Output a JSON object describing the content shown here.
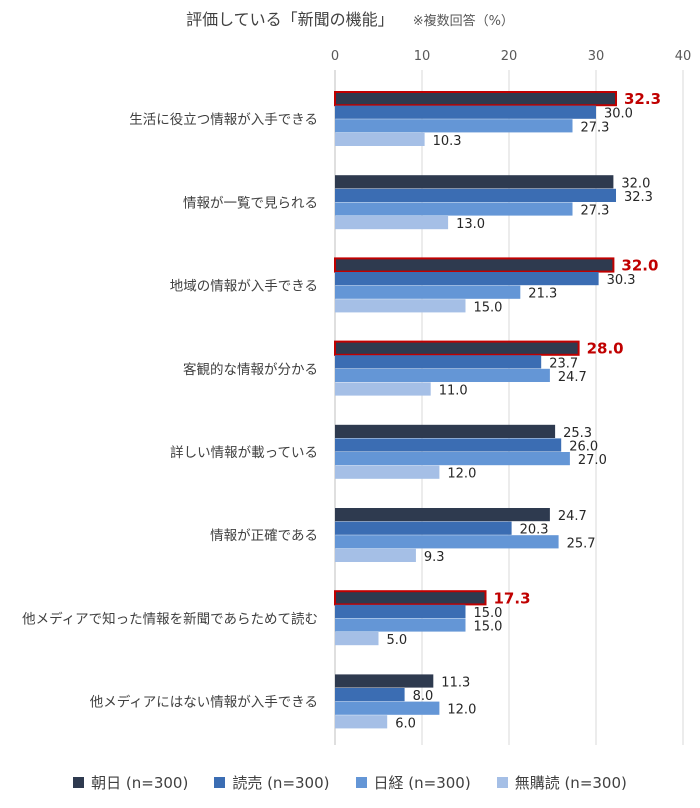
{
  "chart_data": {
    "type": "bar",
    "orientation": "horizontal",
    "title": "評価している「新聞の機能」",
    "subtitle": "※複数回答（%）",
    "xlim": [
      0,
      40
    ],
    "xticks": [
      0,
      10,
      20,
      30,
      40
    ],
    "grid": true,
    "legend_position": "bottom",
    "categories": [
      "生活に役立つ情報が入手できる",
      "情報が一覧で見られる",
      "地域の情報が入手できる",
      "客観的な情報が分かる",
      "詳しい情報が載っている",
      "情報が正確である",
      "他メディアで知った情報を新聞であらためて読む",
      "他メディアにはない情報が入手できる"
    ],
    "series": [
      {
        "name": "朝日 (n=300)",
        "color": "#2e3a4f",
        "values": [
          32.3,
          32.0,
          32.0,
          28.0,
          25.3,
          24.7,
          17.3,
          11.3
        ]
      },
      {
        "name": "読売 (n=300)",
        "color": "#3b6db3",
        "values": [
          30.0,
          32.3,
          30.3,
          23.7,
          26.0,
          20.3,
          15.0,
          8.0
        ]
      },
      {
        "name": "日経 (n=300)",
        "color": "#6496d6",
        "values": [
          27.3,
          27.3,
          21.3,
          24.7,
          27.0,
          25.7,
          15.0,
          12.0
        ]
      },
      {
        "name": "無購読 (n=300)",
        "color": "#a5bfe6",
        "values": [
          10.3,
          13.0,
          15.0,
          11.0,
          12.0,
          9.3,
          5.0,
          6.0
        ]
      }
    ],
    "value_labels": [
      [
        "32.3",
        "32.0",
        "32.0",
        "28.0",
        "25.3",
        "24.7",
        "17.3",
        "11.3"
      ],
      [
        "30.0",
        "32.3",
        "30.3",
        "23.7",
        "26.0",
        "20.3",
        "15.0",
        "8.0"
      ],
      [
        "27.3",
        "27.3",
        "21.3",
        "24.7",
        "27.0",
        "25.7",
        "15.0",
        "12.0"
      ],
      [
        "10.3",
        "13.0",
        "15.0",
        "11.0",
        "12.0",
        "9.3",
        "5.0",
        "6.0"
      ]
    ],
    "highlighted": [
      [
        0,
        0
      ],
      [
        0,
        2
      ],
      [
        0,
        3
      ],
      [
        0,
        6
      ]
    ],
    "highlight_color": "#c00000"
  }
}
